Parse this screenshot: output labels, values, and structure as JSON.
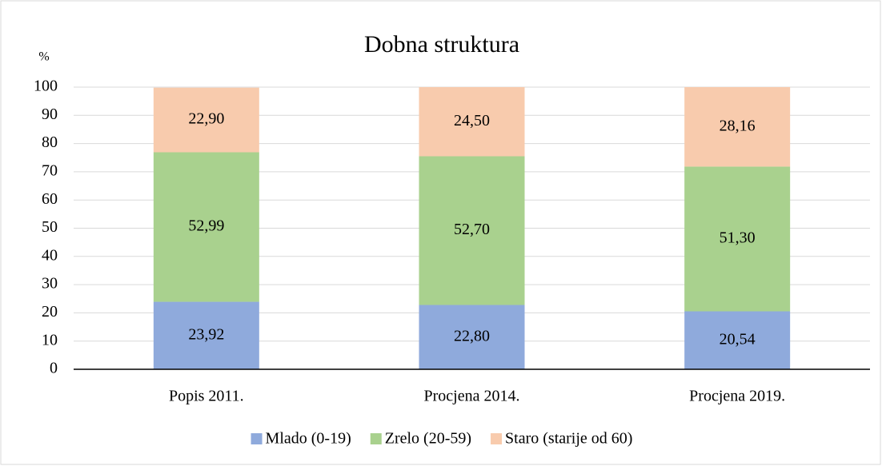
{
  "chart_data": {
    "type": "stacked_bar",
    "title": "Dobna struktura",
    "y_label": "%",
    "categories": [
      "Popis 2011.",
      "Procjena 2014.",
      "Procjena 2019."
    ],
    "series": [
      {
        "name": "Mlado (0-19)",
        "color": "#8faadc",
        "values": [
          23.92,
          22.8,
          20.54
        ],
        "value_labels": [
          "23,92",
          "22,80",
          "20,54"
        ]
      },
      {
        "name": "Zrelo (20-59)",
        "color": "#a9d18e",
        "values": [
          52.99,
          52.7,
          51.3
        ],
        "value_labels": [
          "52,99",
          "52,70",
          "51,30"
        ]
      },
      {
        "name": "Staro (starije od 60)",
        "color": "#f8cbad",
        "values": [
          22.9,
          24.5,
          28.16
        ],
        "value_labels": [
          "22,90",
          "24,50",
          "28,16"
        ]
      }
    ],
    "ylim": [
      0,
      100
    ],
    "yticks": [
      0,
      10,
      20,
      30,
      40,
      50,
      60,
      70,
      80,
      90,
      100
    ],
    "grid": true,
    "legend": "bottom"
  }
}
